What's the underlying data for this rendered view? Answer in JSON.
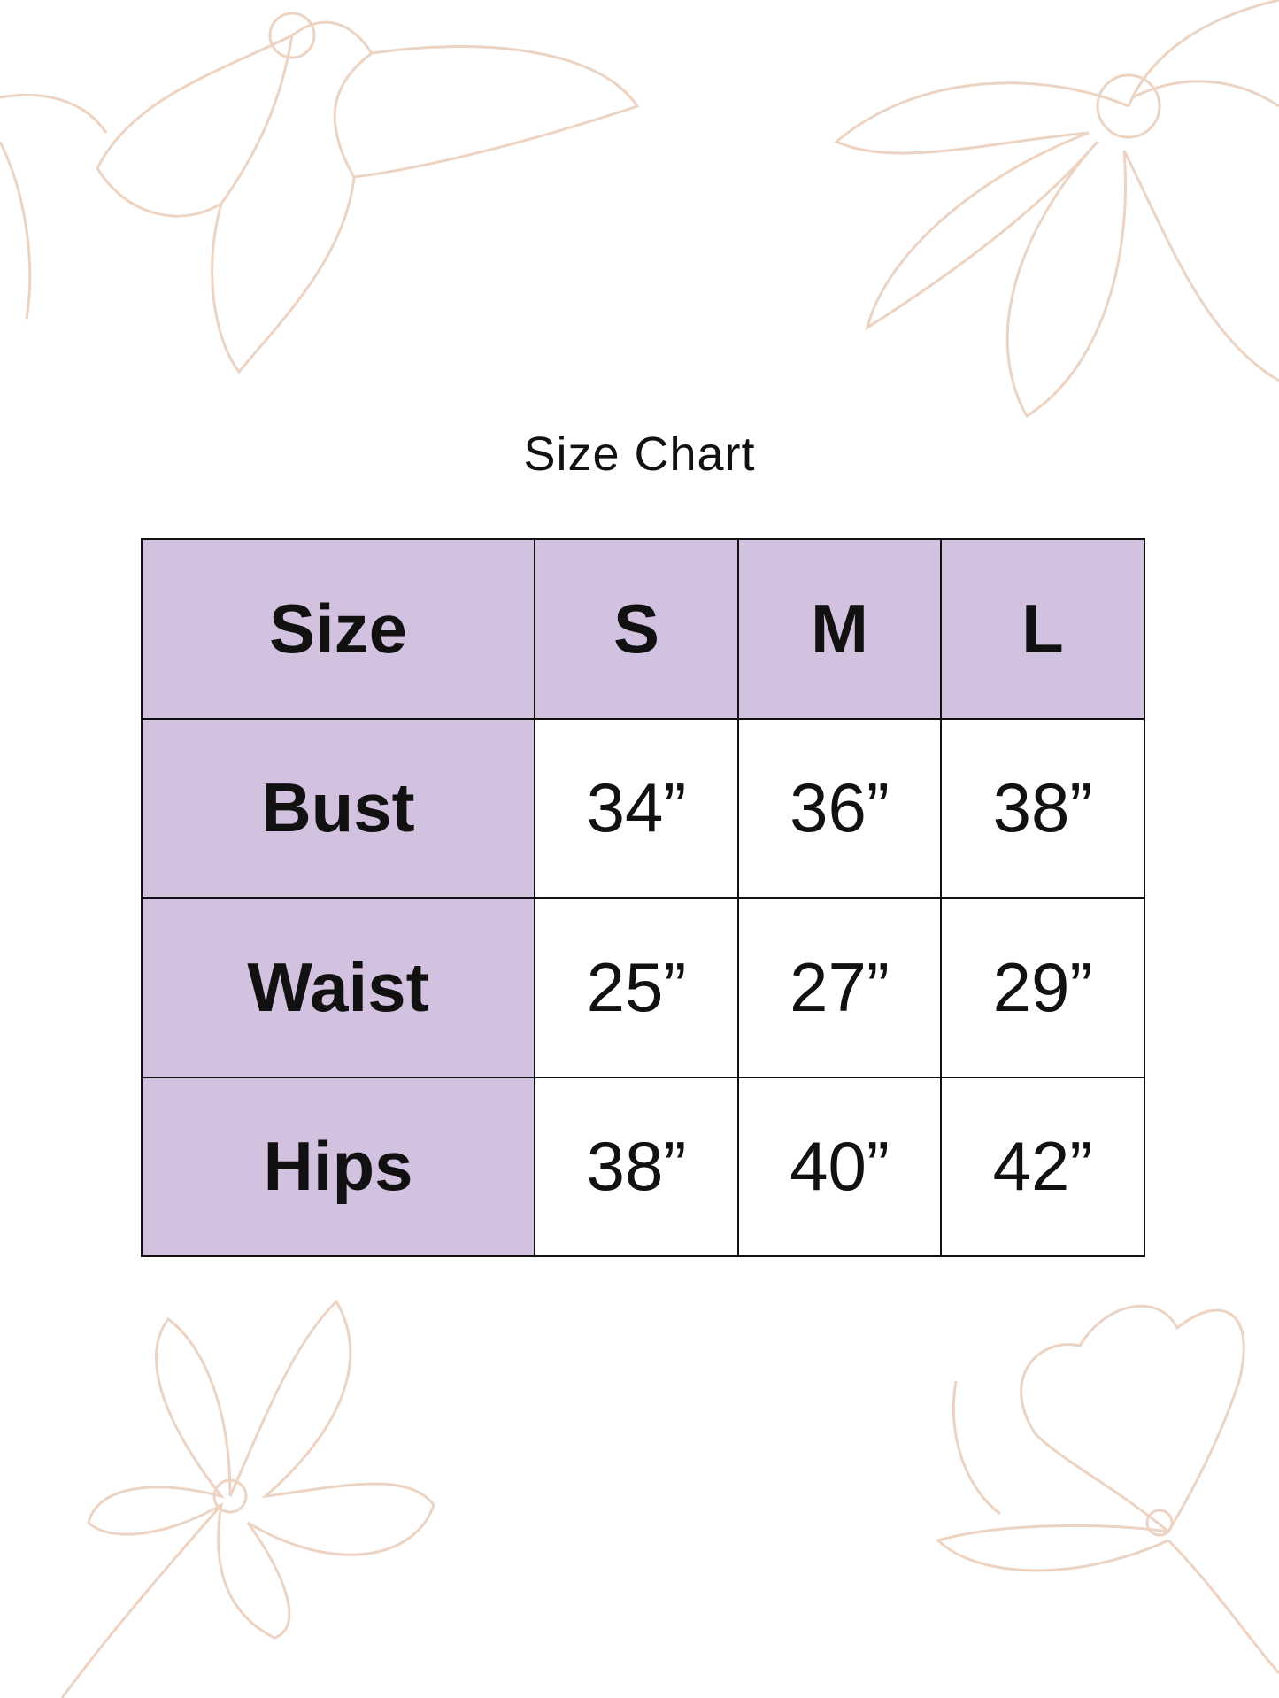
{
  "title": "Size Chart",
  "colors": {
    "header_fill": "#d2c1df",
    "border": "#111111",
    "floral_line": "#ecd3c2"
  },
  "decoration": "floral-line-art",
  "table": {
    "columns": [
      "Size",
      "S",
      "M",
      "L"
    ],
    "rows": [
      {
        "label": "Bust",
        "values": [
          "34”",
          "36”",
          "38”"
        ]
      },
      {
        "label": "Waist",
        "values": [
          "25”",
          "27”",
          "29”"
        ]
      },
      {
        "label": "Hips",
        "values": [
          "38”",
          "40”",
          "42”"
        ]
      }
    ]
  }
}
